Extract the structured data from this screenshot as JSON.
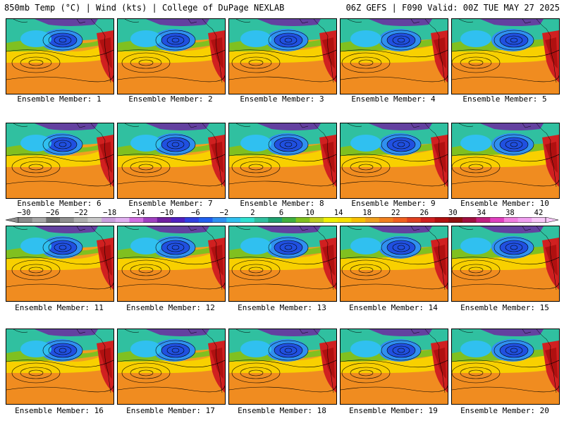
{
  "header": {
    "left": "850mb Temp (°C) | Wind (kts) | College of DuPage NEXLAB",
    "right": "06Z GEFS | F090 Valid: 00Z TUE MAY 27 2025"
  },
  "members": [
    "Ensemble Member: 1",
    "Ensemble Member: 2",
    "Ensemble Member: 3",
    "Ensemble Member: 4",
    "Ensemble Member: 5",
    "Ensemble Member: 6",
    "Ensemble Member: 7",
    "Ensemble Member: 8",
    "Ensemble Member: 9",
    "Ensemble Member: 10",
    "Ensemble Member: 11",
    "Ensemble Member: 12",
    "Ensemble Member: 13",
    "Ensemble Member: 14",
    "Ensemble Member: 15",
    "Ensemble Member: 16",
    "Ensemble Member: 17",
    "Ensemble Member: 18",
    "Ensemble Member: 19",
    "Ensemble Member: 20"
  ],
  "colorbar": {
    "ticks": [
      "−30",
      "−26",
      "−22",
      "−18",
      "−14",
      "−10",
      "−6",
      "−2",
      "2",
      "6",
      "10",
      "14",
      "18",
      "22",
      "26",
      "30",
      "34",
      "38",
      "42"
    ],
    "colors": [
      "#8c8c8c",
      "#a8a8a8",
      "#707070",
      "#909090",
      "#b0b0b0",
      "#c8c8c8",
      "#c9a0dc",
      "#e0b0f0",
      "#d070e0",
      "#a040c0",
      "#7020a0",
      "#5020c0",
      "#3040e0",
      "#2060f0",
      "#3090f0",
      "#30c0f0",
      "#30e0d0",
      "#30c0a0",
      "#20a070",
      "#40b040",
      "#80c020",
      "#c0d020",
      "#f0f000",
      "#f8e000",
      "#f8c000",
      "#f0a020",
      "#f08020",
      "#f06020",
      "#e04020",
      "#d02020",
      "#b01010",
      "#901010",
      "#a01040",
      "#c02080",
      "#e040c0",
      "#f080e0",
      "#f0a0f0",
      "#f8c8f8"
    ]
  }
}
